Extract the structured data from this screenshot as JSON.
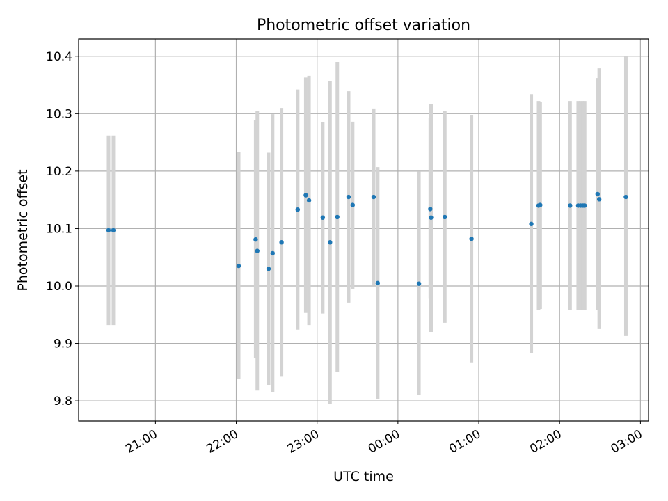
{
  "chart_data": {
    "type": "scatter",
    "title": "Photometric offset variation",
    "xlabel": "UTC time",
    "ylabel": "Photometric offset",
    "grid": true,
    "legend": false,
    "x_unit": "hours since 00:00 UTC of first day (negative = previous day)",
    "xlim": [
      -3.95,
      3.1
    ],
    "ylim": [
      9.765,
      10.43
    ],
    "x_ticks": [
      {
        "value": -3,
        "label": "21:00"
      },
      {
        "value": -2,
        "label": "22:00"
      },
      {
        "value": -1,
        "label": "23:00"
      },
      {
        "value": 0,
        "label": "00:00"
      },
      {
        "value": 1,
        "label": "01:00"
      },
      {
        "value": 2,
        "label": "02:00"
      },
      {
        "value": 3,
        "label": "03:00"
      }
    ],
    "y_ticks": [
      9.8,
      9.9,
      10.0,
      10.1,
      10.2,
      10.3,
      10.4
    ],
    "point_color": "#1f77b4",
    "errorbar_color": "#d3d3d3",
    "points": [
      {
        "x": -3.58,
        "y": 10.097,
        "ylo": 9.932,
        "yhi": 10.262
      },
      {
        "x": -3.52,
        "y": 10.097,
        "ylo": 9.932,
        "yhi": 10.262
      },
      {
        "x": -1.97,
        "y": 10.035,
        "ylo": 9.838,
        "yhi": 10.233
      },
      {
        "x": -1.76,
        "y": 10.081,
        "ylo": 9.874,
        "yhi": 10.289
      },
      {
        "x": -1.74,
        "y": 10.061,
        "ylo": 9.818,
        "yhi": 10.304
      },
      {
        "x": -1.6,
        "y": 10.03,
        "ylo": 9.827,
        "yhi": 10.232
      },
      {
        "x": -1.55,
        "y": 10.057,
        "ylo": 9.815,
        "yhi": 10.299
      },
      {
        "x": -1.44,
        "y": 10.076,
        "ylo": 9.842,
        "yhi": 10.31
      },
      {
        "x": -1.24,
        "y": 10.133,
        "ylo": 9.924,
        "yhi": 10.342
      },
      {
        "x": -1.14,
        "y": 10.158,
        "ylo": 9.953,
        "yhi": 10.363
      },
      {
        "x": -1.1,
        "y": 10.149,
        "ylo": 9.932,
        "yhi": 10.366
      },
      {
        "x": -0.93,
        "y": 10.119,
        "ylo": 9.952,
        "yhi": 10.285
      },
      {
        "x": -0.84,
        "y": 10.076,
        "ylo": 9.795,
        "yhi": 10.357
      },
      {
        "x": -0.75,
        "y": 10.12,
        "ylo": 9.85,
        "yhi": 10.39
      },
      {
        "x": -0.61,
        "y": 10.155,
        "ylo": 9.971,
        "yhi": 10.339
      },
      {
        "x": -0.56,
        "y": 10.141,
        "ylo": 9.995,
        "yhi": 10.286
      },
      {
        "x": -0.3,
        "y": 10.155,
        "ylo": 10.001,
        "yhi": 10.309
      },
      {
        "x": -0.25,
        "y": 10.005,
        "ylo": 9.803,
        "yhi": 10.207
      },
      {
        "x": 0.26,
        "y": 10.004,
        "ylo": 9.81,
        "yhi": 10.199
      },
      {
        "x": 0.4,
        "y": 10.134,
        "ylo": 9.979,
        "yhi": 10.292
      },
      {
        "x": 0.41,
        "y": 10.119,
        "ylo": 9.92,
        "yhi": 10.317
      },
      {
        "x": 0.58,
        "y": 10.12,
        "ylo": 9.936,
        "yhi": 10.304
      },
      {
        "x": 0.91,
        "y": 10.082,
        "ylo": 9.867,
        "yhi": 10.298
      },
      {
        "x": 1.65,
        "y": 10.108,
        "ylo": 9.883,
        "yhi": 10.334
      },
      {
        "x": 1.74,
        "y": 10.14,
        "ylo": 9.958,
        "yhi": 10.322
      },
      {
        "x": 1.76,
        "y": 10.141,
        "ylo": 9.96,
        "yhi": 10.32
      },
      {
        "x": 2.13,
        "y": 10.14,
        "ylo": 9.958,
        "yhi": 10.322
      },
      {
        "x": 2.23,
        "y": 10.14,
        "ylo": 9.958,
        "yhi": 10.322
      },
      {
        "x": 2.26,
        "y": 10.14,
        "ylo": 9.958,
        "yhi": 10.322
      },
      {
        "x": 2.29,
        "y": 10.14,
        "ylo": 9.958,
        "yhi": 10.322
      },
      {
        "x": 2.31,
        "y": 10.14,
        "ylo": 9.958,
        "yhi": 10.322
      },
      {
        "x": 2.47,
        "y": 10.16,
        "ylo": 9.958,
        "yhi": 10.362
      },
      {
        "x": 2.49,
        "y": 10.151,
        "ylo": 9.925,
        "yhi": 10.379
      },
      {
        "x": 2.82,
        "y": 10.155,
        "ylo": 9.913,
        "yhi": 10.399
      }
    ]
  }
}
